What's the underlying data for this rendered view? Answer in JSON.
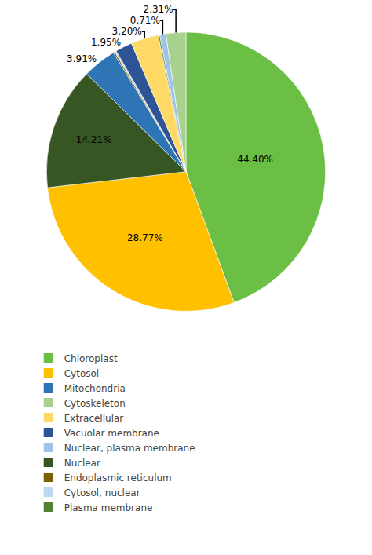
{
  "chart_data": {
    "type": "pie",
    "categories": [
      "Chloroplast",
      "Cytosol",
      "Nuclear",
      "Mitochondria",
      "Endoplasmic reticulum",
      "Cytosol, nuclear",
      "Vacuolar membrane",
      "Extracellular",
      "Plasma membrane",
      "Nuclear, plasma membrane",
      "Cytoskeleton"
    ],
    "values": [
      44.4,
      28.77,
      14.21,
      3.91,
      0.18,
      0.18,
      1.95,
      3.2,
      0.18,
      0.71,
      2.31
    ],
    "value_labels": [
      "44.40%",
      "28.77%",
      "14.21%",
      "3.91%",
      null,
      null,
      "1.95%",
      "3.20%",
      null,
      "0.71%",
      "2.31%"
    ],
    "colors": [
      "#6BBF45",
      "#FFC000",
      "#375623",
      "#2E75B6",
      "#7F6000",
      "#BDD7EE",
      "#2F5496",
      "#FFD966",
      "#548235",
      "#9DC3E6",
      "#A9D18E"
    ],
    "legend_entries": [
      "Chloroplast",
      "Cytosol",
      "Mitochondria",
      "Cytoskeleton",
      "Extracellular",
      "Vacuolar membrane",
      "Nuclear, plasma membrane",
      "Nuclear",
      "Endoplasmic reticulum",
      "Cytosol, nuclear",
      "Plasma membrane"
    ],
    "legend": "lower left"
  }
}
